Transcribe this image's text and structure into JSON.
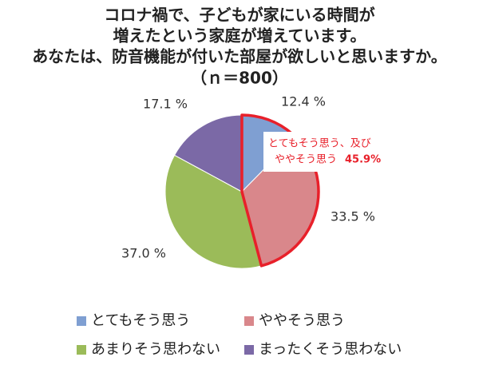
{
  "chart_data": {
    "type": "pie",
    "title": [
      "コロナ禍で、子どもが家にいる時間が",
      "増えたという家庭が増えています。",
      "あなたは、防音機能が付いた部屋が欲しいと思いますか。",
      "（ｎ＝800）"
    ],
    "series": [
      {
        "categories": [
          "とてもそう思う",
          "ややそう思う",
          "あまりそう思わない",
          "まったくそう思わない"
        ],
        "values": [
          12.4,
          33.5,
          37.0,
          17.1
        ],
        "value_labels": [
          "12.4 %",
          "33.5 %",
          "37.0 %",
          "17.1 %"
        ],
        "colors": [
          "#7f9fd2",
          "#d9878b",
          "#9bbb59",
          "#7b69a6"
        ]
      }
    ],
    "annotation": {
      "lines": [
        "とてもそう思う、及び",
        "ややそう思う"
      ],
      "value": 45.9,
      "label": "45.9%",
      "color": "#e8202a"
    }
  }
}
